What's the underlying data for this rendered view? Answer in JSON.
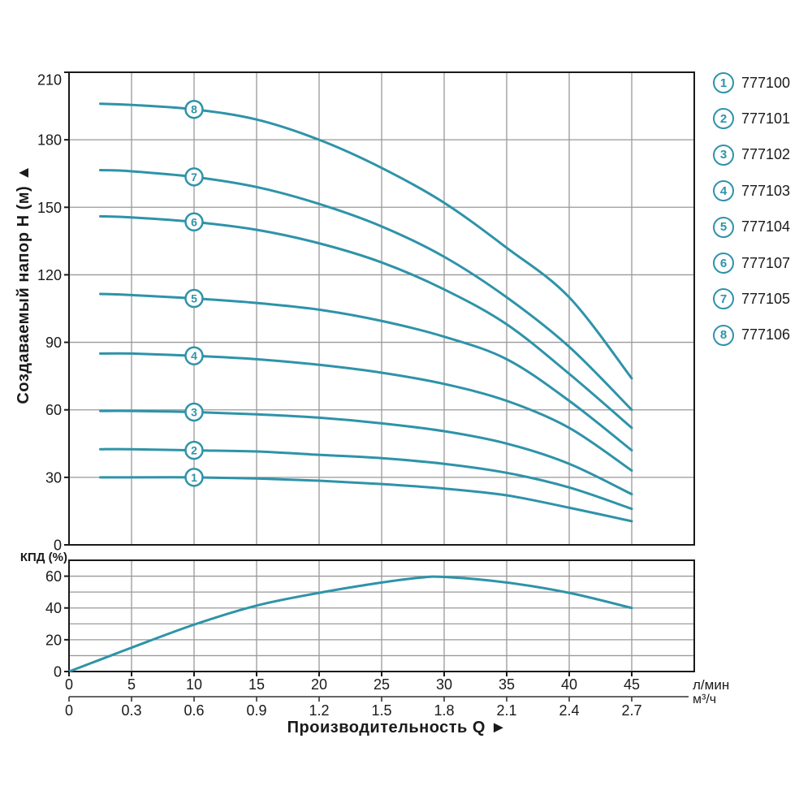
{
  "titles": {
    "y_axis": "Создаваемый напор H (м) ▲",
    "x_axis": "Производительность Q ►",
    "efficiency": "КПД (%)",
    "unit_primary": "л/мин",
    "unit_secondary": "м³/ч"
  },
  "colors": {
    "curve": "#2E93A9",
    "grid": "#999999",
    "frame": "#1a1a1a",
    "axis": "#333333",
    "text": "#1a1a1a"
  },
  "legend": {
    "items": [
      {
        "marker": "1",
        "part_number": "777100"
      },
      {
        "marker": "2",
        "part_number": "777101"
      },
      {
        "marker": "3",
        "part_number": "777102"
      },
      {
        "marker": "4",
        "part_number": "777103"
      },
      {
        "marker": "5",
        "part_number": "777104"
      },
      {
        "marker": "6",
        "part_number": "777107"
      },
      {
        "marker": "7",
        "part_number": "777105"
      },
      {
        "marker": "8",
        "part_number": "777106"
      }
    ]
  },
  "chart_data": [
    {
      "type": "line",
      "title": "Pump head curves",
      "xlabel": "Производительность Q",
      "ylabel": "Создаваемый напор H (м)",
      "xlim": [
        0,
        50
      ],
      "ylim": [
        0,
        210
      ],
      "grid": true,
      "x_ticks_lmin": [
        0,
        5,
        10,
        15,
        20,
        25,
        30,
        35,
        40,
        45
      ],
      "x_ticks_m3h": [
        "0",
        "0.3",
        "0.6",
        "0.9",
        "1.2",
        "1.5",
        "1.8",
        "2.1",
        "2.4",
        "2.7"
      ],
      "y_ticks": [
        0,
        30,
        60,
        90,
        120,
        150,
        180,
        210
      ],
      "marker_at_x": 10,
      "x": [
        2.5,
        5,
        10,
        15,
        20,
        25,
        30,
        35,
        40,
        45
      ],
      "series": [
        {
          "name": "1",
          "part_number": "777100",
          "values": [
            30,
            30,
            30,
            29.5,
            28.5,
            27,
            25,
            22,
            16.5,
            10.5
          ]
        },
        {
          "name": "2",
          "part_number": "777101",
          "values": [
            42.5,
            42.5,
            42,
            41.5,
            40,
            38.5,
            36,
            32,
            25.5,
            16
          ]
        },
        {
          "name": "3",
          "part_number": "777102",
          "values": [
            59.5,
            59.5,
            59,
            58,
            56.5,
            54,
            50.5,
            45,
            36,
            22.5
          ]
        },
        {
          "name": "4",
          "part_number": "777103",
          "values": [
            85,
            85,
            84,
            82.5,
            80,
            76.5,
            71.5,
            64,
            52,
            33
          ]
        },
        {
          "name": "5",
          "part_number": "777104",
          "values": [
            111.5,
            111,
            109.5,
            107.5,
            104.5,
            99.5,
            92.5,
            82.5,
            64,
            42
          ]
        },
        {
          "name": "6",
          "part_number": "777107",
          "values": [
            146,
            145.5,
            143.5,
            140,
            134,
            125.5,
            113.5,
            98,
            76,
            52
          ]
        },
        {
          "name": "7",
          "part_number": "777105",
          "values": [
            166.5,
            166,
            163.5,
            159,
            151.5,
            141.5,
            128,
            110,
            88,
            60
          ]
        },
        {
          "name": "8",
          "part_number": "777106",
          "values": [
            196,
            195.5,
            193.5,
            189,
            180,
            167.5,
            152,
            132,
            110,
            74
          ]
        }
      ]
    },
    {
      "type": "line",
      "title": "Efficiency curve",
      "ylabel": "КПД (%)",
      "xlim": [
        0,
        50
      ],
      "ylim": [
        0,
        70
      ],
      "grid": true,
      "y_ticks_labeled": [
        0,
        20,
        40,
        60
      ],
      "y_grid_step": 10,
      "series": [
        {
          "name": "КПД",
          "x": [
            0,
            2.5,
            5,
            10,
            15,
            20,
            25,
            28,
            30,
            35,
            40,
            45
          ],
          "values": [
            0,
            7.5,
            15,
            29.5,
            41.5,
            49.5,
            56,
            59,
            59.5,
            56,
            49.5,
            40
          ]
        }
      ]
    }
  ]
}
